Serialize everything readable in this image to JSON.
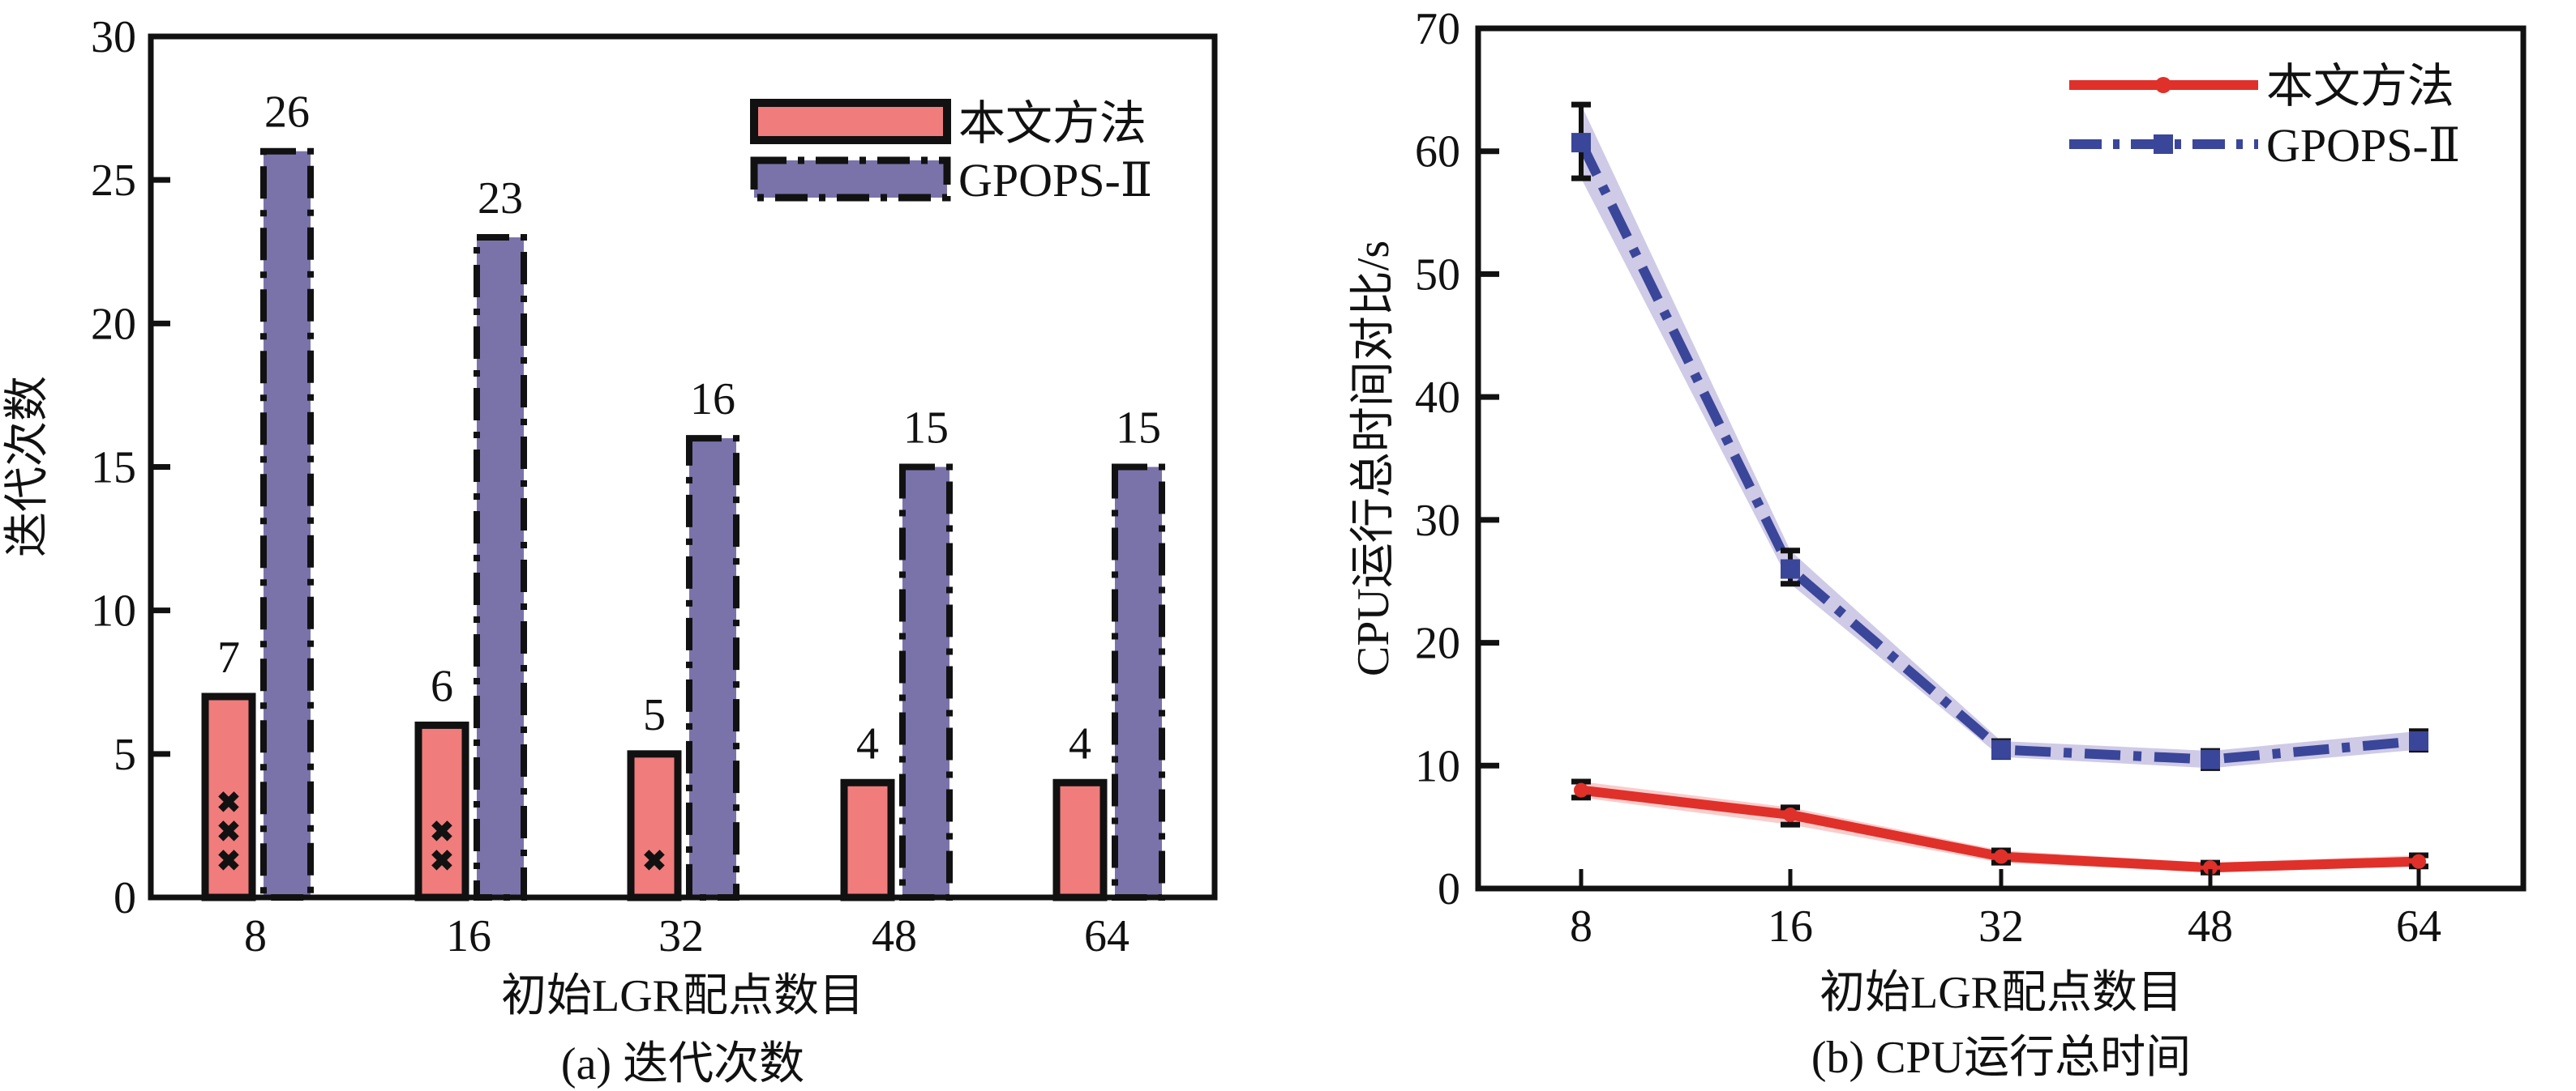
{
  "colors": {
    "pink": "#F07C7C",
    "purple": "#7A73AA",
    "red": "#E0302A",
    "blue": "#3A4699",
    "purple_band": "#C7C1E2",
    "red_band": "#F6B7B7"
  },
  "chart_data": [
    {
      "type": "bar",
      "title": "(a) 迭代次数",
      "xlabel": "初始LGR配点数目",
      "ylabel": "迭代次数",
      "categories": [
        "8",
        "16",
        "32",
        "48",
        "64"
      ],
      "ylim": [
        0,
        30
      ],
      "yticks": [
        "0",
        "5",
        "10",
        "15",
        "20",
        "25",
        "30"
      ],
      "legend_position": "top-right",
      "series": [
        {
          "name": "本文方法",
          "values": [
            7,
            6,
            5,
            4,
            4
          ],
          "labels": [
            "7",
            "6",
            "5",
            "4",
            "4"
          ],
          "cross_markers": [
            3,
            2,
            1,
            0,
            0
          ]
        },
        {
          "name": "GPOPS-Ⅱ",
          "values": [
            26,
            23,
            16,
            15,
            15
          ],
          "labels": [
            "26",
            "23",
            "16",
            "15",
            "15"
          ]
        }
      ]
    },
    {
      "type": "line",
      "title": "(b) CPU运行总时间",
      "xlabel": "初始LGR配点数目",
      "ylabel": "CPU运行总时间对比/s",
      "categories": [
        "8",
        "16",
        "32",
        "48",
        "64"
      ],
      "ylim": [
        0,
        70
      ],
      "yticks": [
        "0",
        "10",
        "20",
        "30",
        "40",
        "50",
        "60",
        "70"
      ],
      "legend_position": "top-right",
      "series": [
        {
          "name": "本文方法",
          "values": [
            8.0,
            6.0,
            2.6,
            1.7,
            2.2
          ],
          "err_low": [
            7.4,
            5.2,
            2.1,
            1.3,
            1.8
          ],
          "err_high": [
            8.7,
            6.6,
            3.1,
            2.1,
            2.7
          ]
        },
        {
          "name": "GPOPS-Ⅱ",
          "values": [
            60.7,
            26.0,
            11.3,
            10.5,
            12.0
          ],
          "err_low": [
            57.8,
            24.8,
            10.7,
            9.8,
            11.3
          ],
          "err_high": [
            63.8,
            27.5,
            12.0,
            11.2,
            12.8
          ]
        }
      ]
    }
  ]
}
